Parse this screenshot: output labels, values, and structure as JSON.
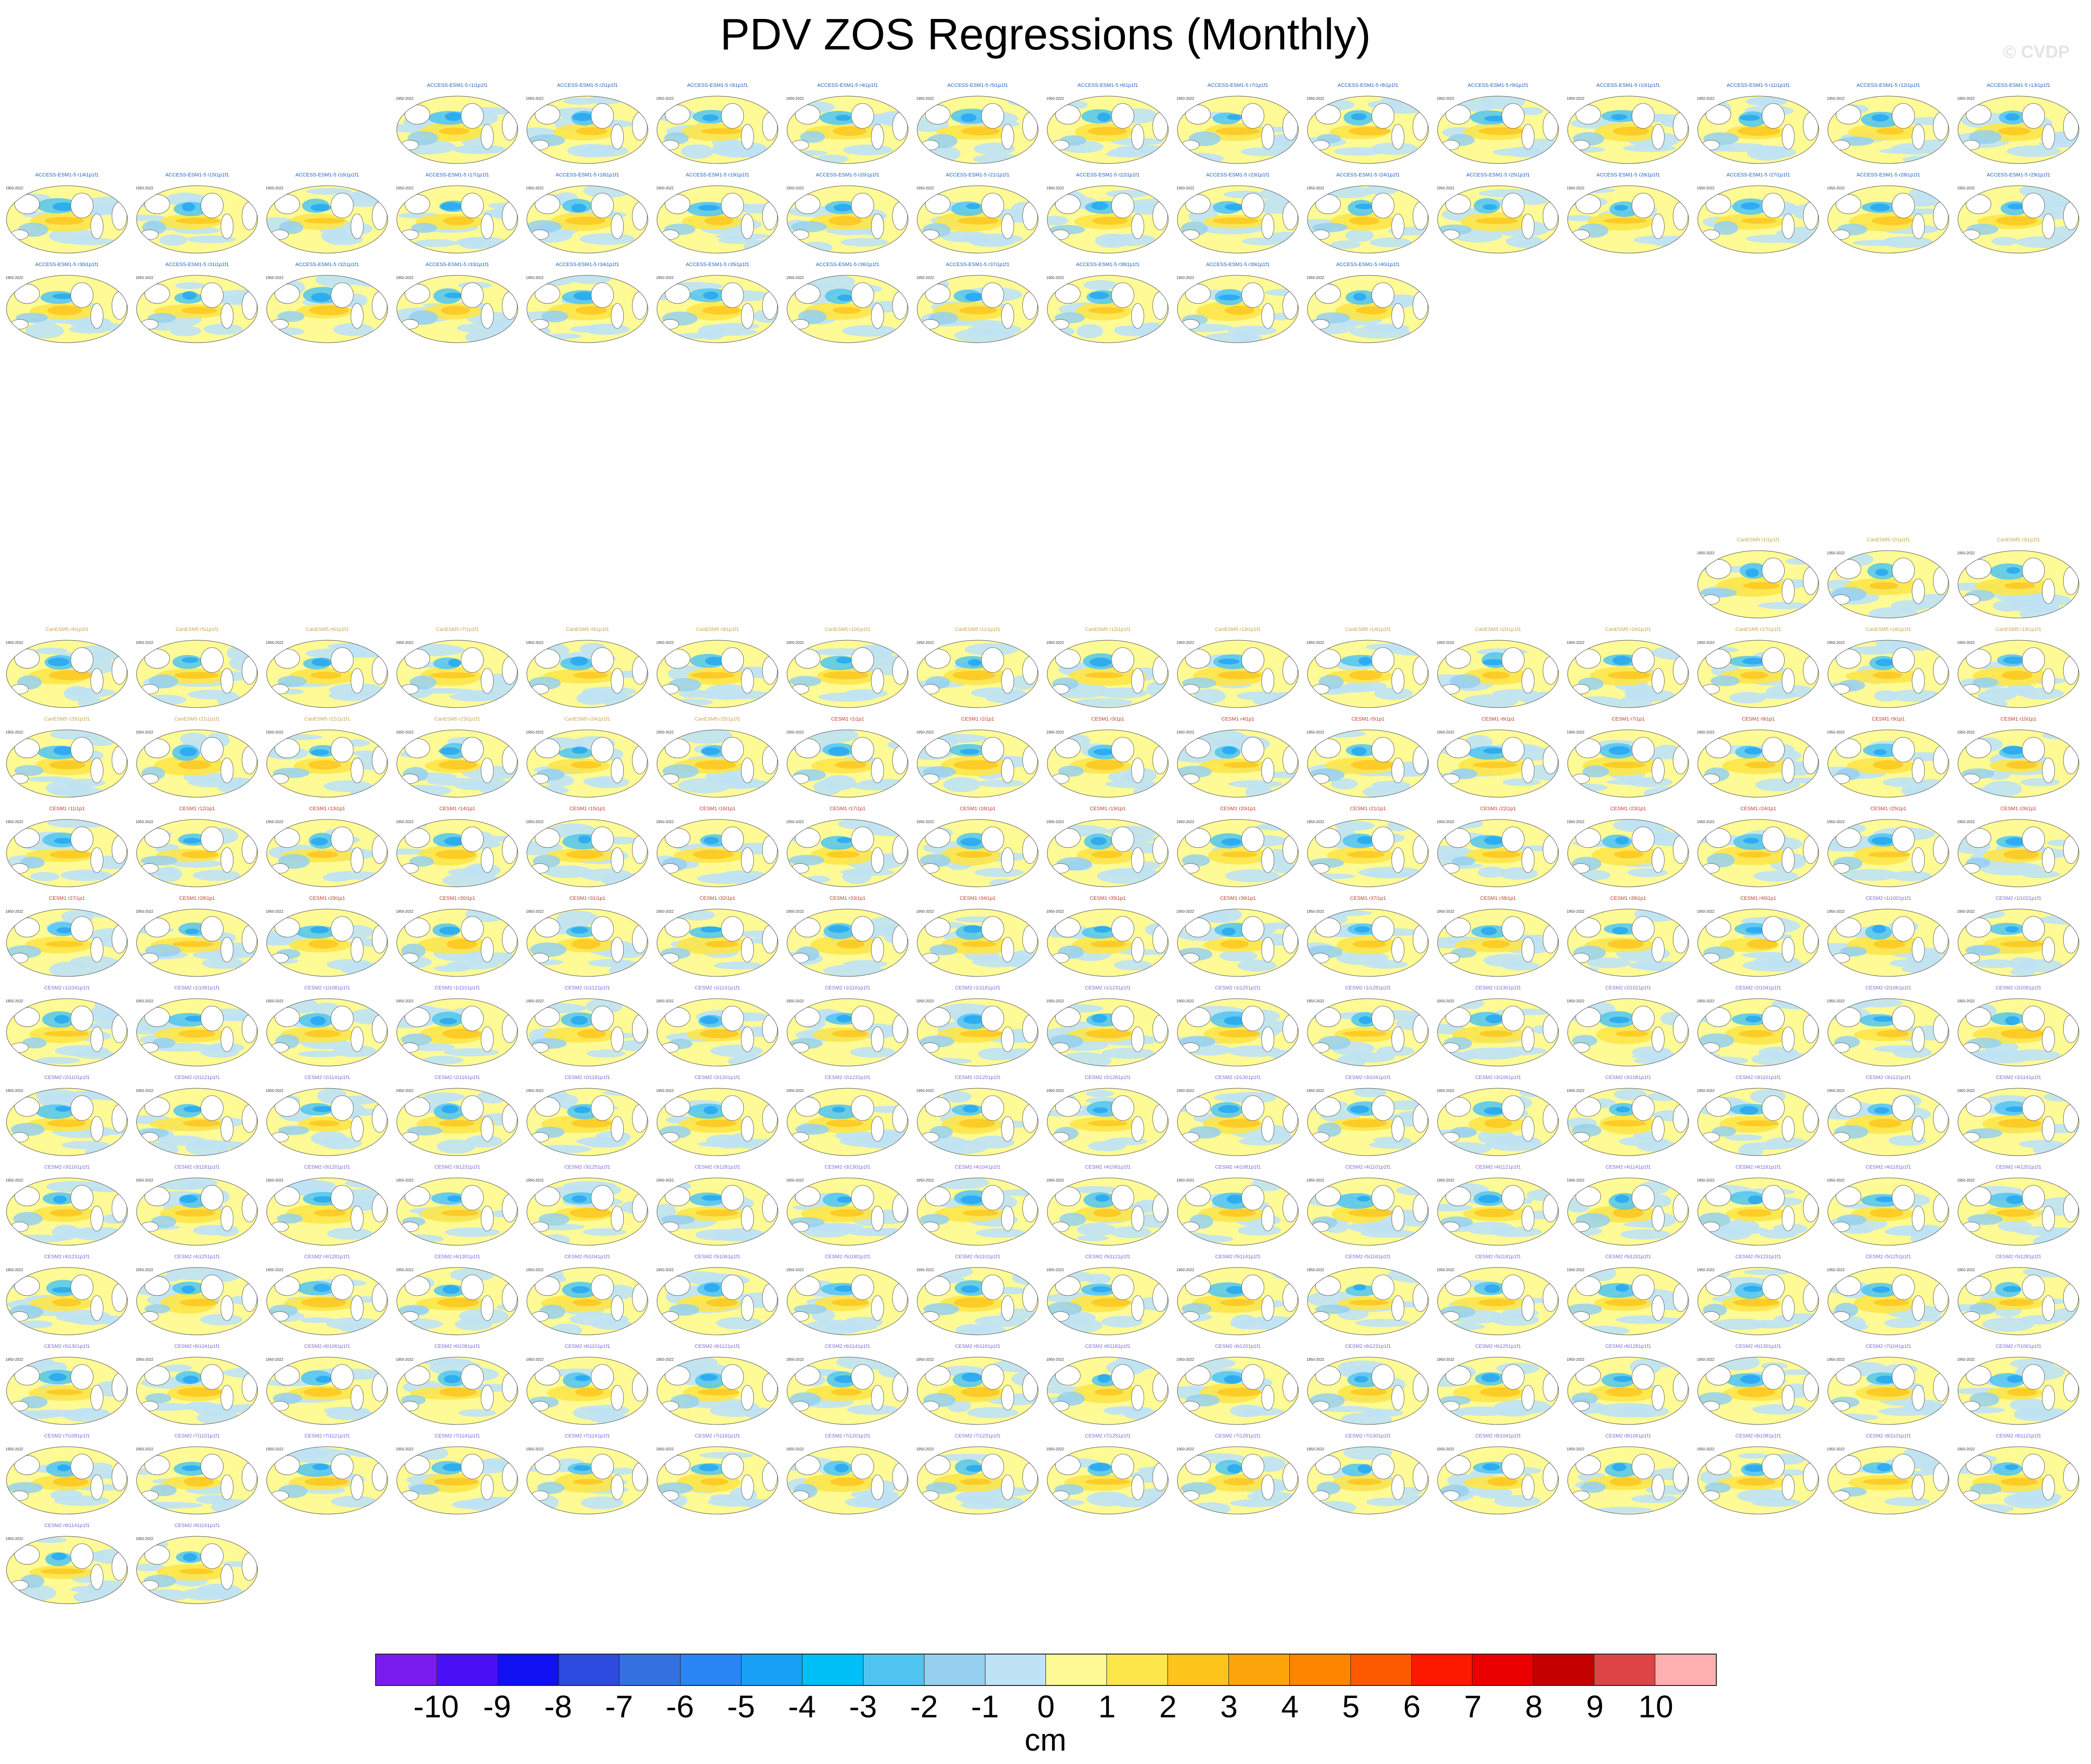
{
  "title": "PDV ZOS Regressions (Monthly)",
  "watermark": "© CVDP",
  "chart_data": {
    "type": "heatmap",
    "description_of_panels": "small global map panels, one per ensemble member",
    "panel_year_label": "1950-2022",
    "groups": [
      {
        "model": "ACCESS-ESM1-5",
        "title_color": "#1f5fbf",
        "members": [
          "ACCESS-ESM1-5 r1i1p1f1",
          "ACCESS-ESM1-5 r2i1p1f1",
          "ACCESS-ESM1-5 r3i1p1f1",
          "ACCESS-ESM1-5 r4i1p1f1",
          "ACCESS-ESM1-5 r5i1p1f1",
          "ACCESS-ESM1-5 r6i1p1f1",
          "ACCESS-ESM1-5 r7i1p1f1",
          "ACCESS-ESM1-5 r8i1p1f1",
          "ACCESS-ESM1-5 r9i1p1f1",
          "ACCESS-ESM1-5 r10i1p1f1",
          "ACCESS-ESM1-5 r11i1p1f1",
          "ACCESS-ESM1-5 r12i1p1f1",
          "ACCESS-ESM1-5 r13i1p1f1",
          "ACCESS-ESM1-5 r14i1p1f1",
          "ACCESS-ESM1-5 r15i1p1f1",
          "ACCESS-ESM1-5 r16i1p1f1",
          "ACCESS-ESM1-5 r17i1p1f1",
          "ACCESS-ESM1-5 r18i1p1f1",
          "ACCESS-ESM1-5 r19i1p1f1",
          "ACCESS-ESM1-5 r20i1p1f1",
          "ACCESS-ESM1-5 r21i1p1f1",
          "ACCESS-ESM1-5 r22i1p1f1",
          "ACCESS-ESM1-5 r23i1p1f1",
          "ACCESS-ESM1-5 r24i1p1f1",
          "ACCESS-ESM1-5 r25i1p1f1",
          "ACCESS-ESM1-5 r26i1p1f1",
          "ACCESS-ESM1-5 r27i1p1f1",
          "ACCESS-ESM1-5 r28i1p1f1",
          "ACCESS-ESM1-5 r29i1p1f1",
          "ACCESS-ESM1-5 r30i1p1f1",
          "ACCESS-ESM1-5 r31i1p1f1",
          "ACCESS-ESM1-5 r32i1p1f1",
          "ACCESS-ESM1-5 r33i1p1f1",
          "ACCESS-ESM1-5 r34i1p1f1",
          "ACCESS-ESM1-5 r35i1p1f1",
          "ACCESS-ESM1-5 r36i1p1f1",
          "ACCESS-ESM1-5 r37i1p1f1",
          "ACCESS-ESM1-5 r38i1p1f1",
          "ACCESS-ESM1-5 r39i1p1f1",
          "ACCESS-ESM1-5 r40i1p1f1"
        ]
      },
      {
        "model": "CanESM5",
        "title_color": "#c9a24a",
        "members": [
          "CanESM5 r1i1p1f1",
          "CanESM5 r2i1p1f1",
          "CanESM5 r3i1p1f1",
          "CanESM5 r4i1p1f1",
          "CanESM5 r5i1p1f1",
          "CanESM5 r6i1p1f1",
          "CanESM5 r7i1p1f1",
          "CanESM5 r8i1p1f1",
          "CanESM5 r9i1p1f1",
          "CanESM5 r10i1p1f1",
          "CanESM5 r11i1p1f1",
          "CanESM5 r12i1p1f1",
          "CanESM5 r13i1p1f1",
          "CanESM5 r14i1p1f1",
          "CanESM5 r15i1p1f1",
          "CanESM5 r16i1p1f1",
          "CanESM5 r17i1p1f1",
          "CanESM5 r18i1p1f1",
          "CanESM5 r19i1p1f1",
          "CanESM5 r20i1p1f1",
          "CanESM5 r21i1p1f1",
          "CanESM5 r22i1p1f1",
          "CanESM5 r23i1p1f1",
          "CanESM5 r24i1p1f1",
          "CanESM5 r25i1p1f1"
        ]
      },
      {
        "model": "CESM1",
        "title_color": "#c0392b",
        "members": [
          "CESM1 r1i1p1",
          "CESM1 r2i1p1",
          "CESM1 r3i1p1",
          "CESM1 r4i1p1",
          "CESM1 r5i1p1",
          "CESM1 r6i1p1",
          "CESM1 r7i1p1",
          "CESM1 r8i1p1",
          "CESM1 r9i1p1",
          "CESM1 r10i1p1",
          "CESM1 r11i1p1",
          "CESM1 r12i1p1",
          "CESM1 r13i1p1",
          "CESM1 r14i1p1",
          "CESM1 r15i1p1",
          "CESM1 r16i1p1",
          "CESM1 r17i1p1",
          "CESM1 r18i1p1",
          "CESM1 r19i1p1",
          "CESM1 r20i1p1",
          "CESM1 r21i1p1",
          "CESM1 r22i1p1",
          "CESM1 r23i1p1",
          "CESM1 r24i1p1",
          "CESM1 r25i1p1",
          "CESM1 r26i1p1",
          "CESM1 r27i1p1",
          "CESM1 r28i1p1",
          "CESM1 r29i1p1",
          "CESM1 r30i1p1",
          "CESM1 r31i1p1",
          "CESM1 r32i1p1",
          "CESM1 r33i1p1",
          "CESM1 r34i1p1",
          "CESM1 r35i1p1",
          "CESM1 r36i1p1",
          "CESM1 r37i1p1",
          "CESM1 r38i1p1",
          "CESM1 r39i1p1",
          "CESM1 r40i1p1"
        ]
      },
      {
        "model": "CESM2",
        "title_color": "#7b68d8",
        "members": [
          "CESM2 r1i1001p1f1",
          "CESM2 r1i1021p1f1",
          "CESM2 r1i1041p1f1",
          "CESM2 r1i1061p1f1",
          "CESM2 r1i1081p1f1",
          "CESM2 r1i1101p1f1",
          "CESM2 r1i1121p1f1",
          "CESM2 r1i1141p1f1",
          "CESM2 r1i1161p1f1",
          "CESM2 r1i1181p1f1",
          "CESM2 r1i1231p1f1",
          "CESM2 r1i1251p1f1",
          "CESM2 r1i1281p1f1",
          "CESM2 r1i1301p1f1",
          "CESM2 r2i1021p1f1",
          "CESM2 r2i1041p1f1",
          "CESM2 r2i1061p1f1",
          "CESM2 r2i1081p1f1",
          "CESM2 r2i1101p1f1",
          "CESM2 r2i1121p1f1",
          "CESM2 r2i1141p1f1",
          "CESM2 r2i1161p1f1",
          "CESM2 r2i1181p1f1",
          "CESM2 r2i1201p1f1",
          "CESM2 r2i1231p1f1",
          "CESM2 r2i1251p1f1",
          "CESM2 r2i1281p1f1",
          "CESM2 r2i1301p1f1",
          "CESM2 r3i1041p1f1",
          "CESM2 r3i1061p1f1",
          "CESM2 r3i1081p1f1",
          "CESM2 r3i1101p1f1",
          "CESM2 r3i1121p1f1",
          "CESM2 r3i1141p1f1",
          "CESM2 r3i1161p1f1",
          "CESM2 r3i1181p1f1",
          "CESM2 r3i1201p1f1",
          "CESM2 r3i1231p1f1",
          "CESM2 r3i1251p1f1",
          "CESM2 r3i1281p1f1",
          "CESM2 r3i1301p1f1",
          "CESM2 r4i1041p1f1",
          "CESM2 r4i1061p1f1",
          "CESM2 r4i1081p1f1",
          "CESM2 r4i1101p1f1",
          "CESM2 r4i1121p1f1",
          "CESM2 r4i1141p1f1",
          "CESM2 r4i1161p1f1",
          "CESM2 r4i1181p1f1",
          "CESM2 r4i1201p1f1",
          "CESM2 r4i1231p1f1",
          "CESM2 r4i1251p1f1",
          "CESM2 r4i1281p1f1",
          "CESM2 r4i1301p1f1",
          "CESM2 r5i1041p1f1",
          "CESM2 r5i1061p1f1",
          "CESM2 r5i1081p1f1",
          "CESM2 r5i1101p1f1",
          "CESM2 r5i1121p1f1",
          "CESM2 r5i1141p1f1",
          "CESM2 r5i1161p1f1",
          "CESM2 r5i1181p1f1",
          "CESM2 r5i1201p1f1",
          "CESM2 r5i1231p1f1",
          "CESM2 r5i1251p1f1",
          "CESM2 r5i1281p1f1",
          "CESM2 r5i1301p1f1",
          "CESM2 r6i1041p1f1",
          "CESM2 r6i1061p1f1",
          "CESM2 r6i1081p1f1",
          "CESM2 r6i1101p1f1",
          "CESM2 r6i1121p1f1",
          "CESM2 r6i1141p1f1",
          "CESM2 r6i1161p1f1",
          "CESM2 r6i1181p1f1",
          "CESM2 r6i1201p1f1",
          "CESM2 r6i1231p1f1",
          "CESM2 r6i1251p1f1",
          "CESM2 r6i1281p1f1",
          "CESM2 r6i1301p1f1",
          "CESM2 r7i1041p1f1",
          "CESM2 r7i1061p1f1",
          "CESM2 r7i1081p1f1",
          "CESM2 r7i1101p1f1",
          "CESM2 r7i1121p1f1",
          "CESM2 r7i1141p1f1",
          "CESM2 r7i1161p1f1",
          "CESM2 r7i1181p1f1",
          "CESM2 r7i1201p1f1",
          "CESM2 r7i1231p1f1",
          "CESM2 r7i1251p1f1",
          "CESM2 r7i1281p1f1",
          "CESM2 r7i1301p1f1",
          "CESM2 r8i1041p1f1",
          "CESM2 r8i1061p1f1",
          "CESM2 r8i1081p1f1",
          "CESM2 r8i1101p1f1",
          "CESM2 r8i1121p1f1",
          "CESM2 r8i1141p1f1",
          "CESM2 r8i1161p1f1"
        ]
      }
    ],
    "colorbar": {
      "units": "cm",
      "tick_labels": [
        "-10",
        "-9",
        "-8",
        "-7",
        "-6",
        "-5",
        "-4",
        "-3",
        "-2",
        "-1",
        "0",
        "1",
        "2",
        "3",
        "4",
        "5",
        "6",
        "7",
        "8",
        "9",
        "10"
      ],
      "colors": [
        "#7a1cf0",
        "#4a10f5",
        "#1010f0",
        "#2e4be0",
        "#3470e0",
        "#2a85f5",
        "#17a0f5",
        "#00c0f8",
        "#50c4f0",
        "#96d0ef",
        "#bfe2f5",
        "#fefa95",
        "#fde64a",
        "#fdc41c",
        "#fda50a",
        "#fd8500",
        "#fd5a00",
        "#fd1800",
        "#ea0000",
        "#c40000",
        "#dc4445",
        "#feb0b0"
      ]
    }
  }
}
